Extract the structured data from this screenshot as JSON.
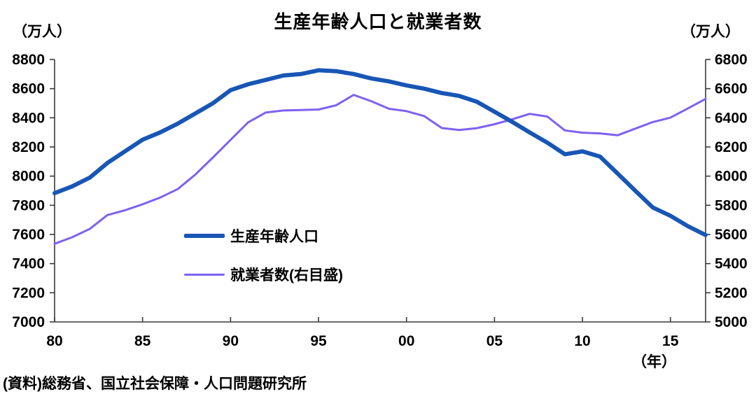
{
  "title": "生産年齢人口と就業者数",
  "source": "(資料)総務省、国立社会保障・人口問題研究所",
  "left_axis": {
    "unit": "（万人）",
    "min": 7000,
    "max": 8800,
    "step": 200,
    "ticks": [
      "8800",
      "8600",
      "8400",
      "8200",
      "8000",
      "7800",
      "7600",
      "7400",
      "7200",
      "7000"
    ]
  },
  "right_axis": {
    "unit": "（万人）",
    "min": 5000,
    "max": 6800,
    "step": 200,
    "ticks": [
      "6800",
      "6600",
      "6400",
      "6200",
      "6000",
      "5800",
      "5600",
      "5400",
      "5200",
      "5000"
    ]
  },
  "x_axis": {
    "unit": "（年）",
    "tick_labels": [
      "80",
      "85",
      "90",
      "95",
      "00",
      "05",
      "10",
      "15"
    ],
    "tick_years": [
      1980,
      1985,
      1990,
      1995,
      2000,
      2005,
      2010,
      2015
    ],
    "min_year": 1980,
    "max_year": 2017
  },
  "legend": [
    {
      "label": "生産年齢人口",
      "color": "#1856b5",
      "thickness": 6
    },
    {
      "label": "就業者数(右目盛)",
      "color": "#7e61f0",
      "thickness": 3
    }
  ],
  "colors": {
    "working_age_line": "#1856b5",
    "employment_line": "#7e61f0",
    "axis": "#3a3a3a",
    "text": "#000000"
  },
  "chart_data": {
    "type": "line",
    "title": "生産年齢人口と就業者数",
    "x_label": "（年）",
    "x": [
      1980,
      1981,
      1982,
      1983,
      1984,
      1985,
      1986,
      1987,
      1988,
      1989,
      1990,
      1991,
      1992,
      1993,
      1994,
      1995,
      1996,
      1997,
      1998,
      1999,
      2000,
      2001,
      2002,
      2003,
      2004,
      2005,
      2006,
      2007,
      2008,
      2009,
      2010,
      2011,
      2012,
      2013,
      2014,
      2015,
      2016,
      2017
    ],
    "series": [
      {
        "name": "生産年齢人口",
        "axis": "left",
        "unit": "万人",
        "values": [
          7883,
          7930,
          7990,
          8090,
          8170,
          8250,
          8300,
          8360,
          8430,
          8500,
          8590,
          8630,
          8660,
          8690,
          8700,
          8726,
          8720,
          8700,
          8670,
          8650,
          8622,
          8600,
          8570,
          8550,
          8510,
          8442,
          8373,
          8300,
          8230,
          8150,
          8170,
          8134,
          8018,
          7900,
          7785,
          7728,
          7656,
          7596
        ]
      },
      {
        "name": "就業者数(右目盛)",
        "axis": "right",
        "unit": "万人",
        "values": [
          5536,
          5581,
          5638,
          5733,
          5766,
          5807,
          5853,
          5911,
          6011,
          6128,
          6249,
          6369,
          6436,
          6450,
          6453,
          6457,
          6486,
          6557,
          6514,
          6462,
          6446,
          6412,
          6330,
          6316,
          6329,
          6356,
          6389,
          6427,
          6409,
          6314,
          6298,
          6293,
          6280,
          6326,
          6371,
          6401,
          6465,
          6530
        ]
      }
    ],
    "left_ylim": [
      7000,
      8800
    ],
    "right_ylim": [
      5000,
      6800
    ],
    "grid": false,
    "legend_position": "inside-lower-center"
  }
}
